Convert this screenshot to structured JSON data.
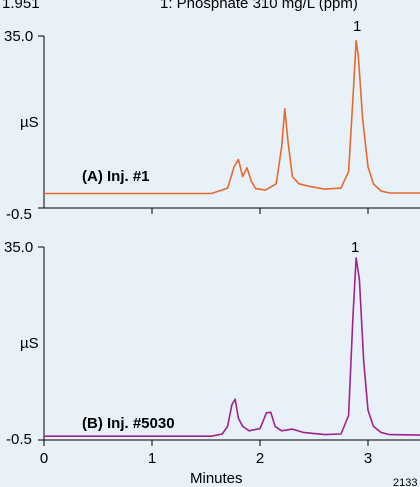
{
  "header": {
    "left_fragment": "1.951",
    "title_fragment": "1: Phosphate 310 mg/L (ppm)"
  },
  "footer_code": "2133",
  "chart_data": [
    {
      "type": "line",
      "panel_label": "(A) Inj. #1",
      "ylabel": "µS",
      "xlabel": "",
      "ylim": [
        -0.5,
        35.0
      ],
      "xlim": [
        0,
        3.5
      ],
      "y_tick_labels": [
        "35.0",
        "-0.5"
      ],
      "peak_label": "1",
      "series": [
        {
          "color": "#e8692c",
          "x": [
            0.0,
            1.55,
            1.62,
            1.7,
            1.76,
            1.8,
            1.84,
            1.88,
            1.92,
            1.96,
            2.05,
            2.15,
            2.2,
            2.23,
            2.26,
            2.3,
            2.36,
            2.45,
            2.6,
            2.75,
            2.82,
            2.86,
            2.89,
            2.91,
            2.95,
            3.0,
            3.05,
            3.12,
            3.2,
            3.5
          ],
          "y": [
            2.5,
            2.5,
            3.0,
            3.6,
            8.0,
            9.5,
            6.0,
            7.8,
            5.0,
            3.5,
            3.2,
            4.5,
            12.0,
            20.0,
            13.0,
            6.0,
            4.5,
            4.0,
            3.4,
            3.6,
            7.0,
            22.0,
            34.0,
            31.0,
            18.0,
            8.0,
            4.5,
            3.0,
            2.6,
            2.6
          ]
        }
      ]
    },
    {
      "type": "line",
      "panel_label": "(B) Inj. #5030",
      "ylabel": "µS",
      "xlabel": "Minutes",
      "ylim": [
        -0.5,
        35.0
      ],
      "xlim": [
        0,
        3.5
      ],
      "x_ticks": [
        0,
        1,
        2,
        3
      ],
      "x_tick_labels": [
        "0",
        "1",
        "2",
        "3"
      ],
      "y_tick_labels": [
        "35.0",
        "-0.5"
      ],
      "peak_label": "1",
      "series": [
        {
          "color": "#a0228c",
          "x": [
            0.0,
            1.55,
            1.65,
            1.7,
            1.74,
            1.77,
            1.8,
            1.84,
            1.9,
            2.0,
            2.06,
            2.1,
            2.14,
            2.2,
            2.3,
            2.4,
            2.6,
            2.75,
            2.82,
            2.86,
            2.89,
            2.92,
            2.96,
            3.0,
            3.05,
            3.12,
            3.2,
            3.5
          ],
          "y": [
            0.2,
            0.2,
            0.6,
            2.0,
            6.0,
            7.0,
            3.5,
            2.0,
            1.2,
            1.6,
            4.5,
            4.6,
            2.0,
            1.2,
            1.5,
            0.9,
            0.5,
            0.6,
            4.0,
            22.0,
            33.0,
            29.0,
            14.0,
            5.0,
            2.0,
            0.9,
            0.5,
            0.4
          ]
        }
      ]
    }
  ]
}
